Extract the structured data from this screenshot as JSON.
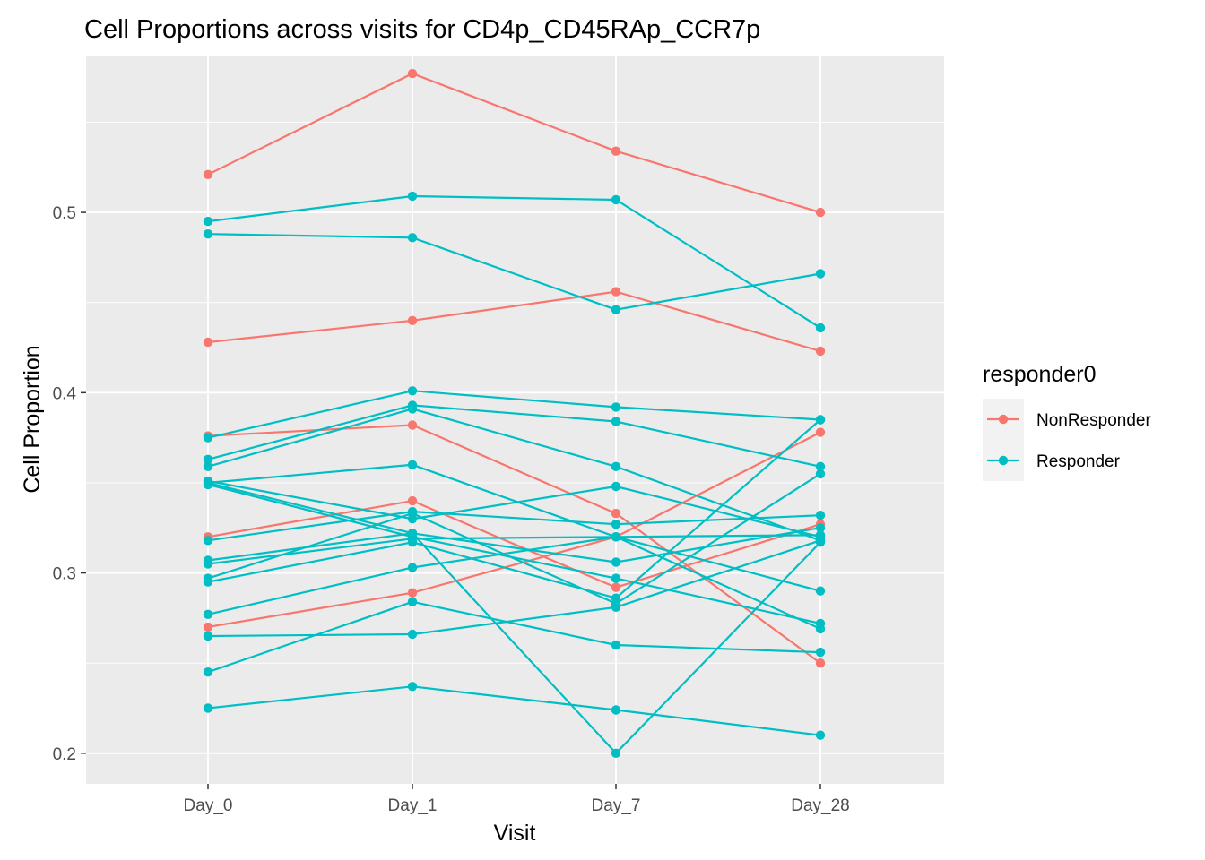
{
  "chart_data": {
    "type": "line",
    "title": "Cell Proportions across visits for CD4p_CD45RAp_CCR7p",
    "xlabel": "Visit",
    "ylabel": "Cell Proportion",
    "categories": [
      "Day_0",
      "Day_1",
      "Day_7",
      "Day_28"
    ],
    "ylim": [
      0.183,
      0.587
    ],
    "y_ticks": [
      0.2,
      0.3,
      0.4,
      0.5
    ],
    "y_tick_labels": [
      "0.2",
      "0.3",
      "0.4",
      "0.5"
    ],
    "grid": true,
    "legend": {
      "title": "responder0",
      "position": "right",
      "entries": [
        "NonResponder",
        "Responder"
      ]
    },
    "colors": {
      "NonResponder": "#F8766D",
      "Responder": "#00BFC4"
    },
    "series": [
      {
        "group": "NonResponder",
        "values": [
          0.521,
          0.577,
          0.534,
          0.5
        ]
      },
      {
        "group": "NonResponder",
        "values": [
          0.428,
          0.44,
          0.456,
          0.423
        ]
      },
      {
        "group": "NonResponder",
        "values": [
          0.376,
          0.382,
          0.333,
          0.25
        ]
      },
      {
        "group": "NonResponder",
        "values": [
          0.32,
          0.34,
          0.292,
          0.327
        ]
      },
      {
        "group": "NonResponder",
        "values": [
          0.27,
          0.289,
          0.32,
          0.378
        ]
      },
      {
        "group": "Responder",
        "values": [
          0.495,
          0.509,
          0.507,
          0.436
        ]
      },
      {
        "group": "Responder",
        "values": [
          0.488,
          0.486,
          0.446,
          0.466
        ]
      },
      {
        "group": "Responder",
        "values": [
          0.375,
          0.401,
          0.392,
          0.385
        ]
      },
      {
        "group": "Responder",
        "values": [
          0.363,
          0.393,
          0.384,
          0.359
        ]
      },
      {
        "group": "Responder",
        "values": [
          0.359,
          0.391,
          0.359,
          0.318
        ]
      },
      {
        "group": "Responder",
        "values": [
          0.351,
          0.33,
          0.348,
          0.32
        ]
      },
      {
        "group": "Responder",
        "values": [
          0.35,
          0.36,
          0.32,
          0.29
        ]
      },
      {
        "group": "Responder",
        "values": [
          0.349,
          0.32,
          0.297,
          0.272
        ]
      },
      {
        "group": "Responder",
        "values": [
          0.318,
          0.334,
          0.327,
          0.332
        ]
      },
      {
        "group": "Responder",
        "values": [
          0.307,
          0.322,
          0.306,
          0.325
        ]
      },
      {
        "group": "Responder",
        "values": [
          0.305,
          0.319,
          0.32,
          0.321
        ]
      },
      {
        "group": "Responder",
        "values": [
          0.297,
          0.333,
          0.283,
          0.355
        ]
      },
      {
        "group": "Responder",
        "values": [
          0.295,
          0.317,
          0.286,
          0.385
        ]
      },
      {
        "group": "Responder",
        "values": [
          0.277,
          0.303,
          0.32,
          0.269
        ]
      },
      {
        "group": "Responder",
        "values": [
          0.265,
          0.266,
          0.281,
          0.318
        ]
      },
      {
        "group": "Responder",
        "values": [
          0.245,
          0.284,
          0.26,
          0.256
        ]
      },
      {
        "group": "Responder",
        "values": [
          0.225,
          0.237,
          0.224,
          0.21
        ]
      },
      {
        "group": "Responder",
        "values": [
          0.35,
          0.322,
          0.2,
          0.317
        ]
      }
    ]
  }
}
